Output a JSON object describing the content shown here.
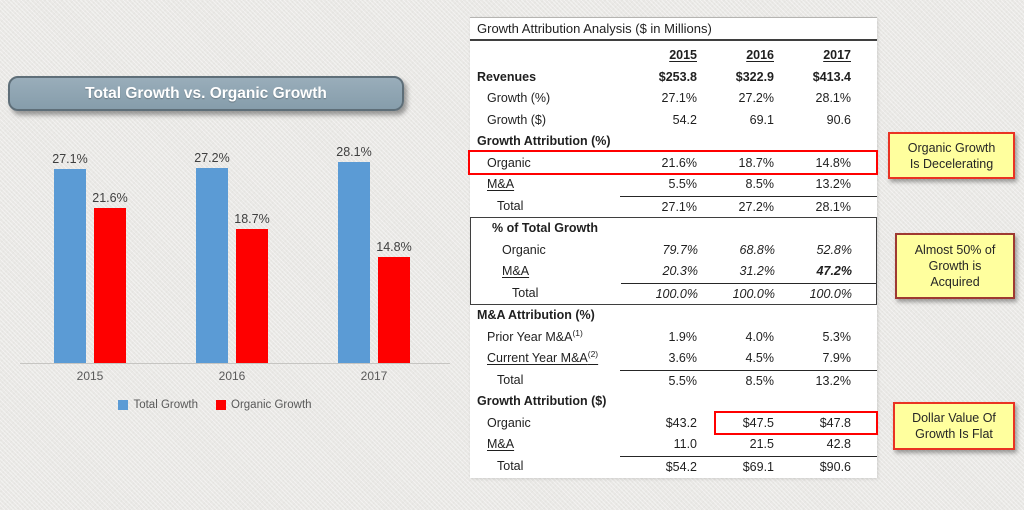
{
  "chart_data": {
    "type": "bar",
    "title": "Total Growth vs. Organic Growth",
    "categories": [
      "2015",
      "2016",
      "2017"
    ],
    "series": [
      {
        "name": "Total Growth",
        "color": "#5B9BD5",
        "values": [
          27.1,
          27.2,
          28.1
        ]
      },
      {
        "name": "Organic Growth",
        "color": "#FE0000",
        "values": [
          21.6,
          18.7,
          14.8
        ]
      }
    ],
    "value_suffix": "%",
    "ylim": [
      0,
      30
    ],
    "gridlines": false,
    "legend_position": "bottom"
  },
  "table": {
    "title": "Growth Attribution Analysis ($ in Millions)",
    "columns": [
      "2015",
      "2016",
      "2017"
    ],
    "blocks": [
      {
        "boxed": false,
        "rows": [
          {
            "label": "Revenues",
            "label_bold": true,
            "values_bold": true,
            "indent": 0,
            "values": [
              "$253.8",
              "$322.9",
              "$413.4"
            ]
          },
          {
            "label": "Growth (%)",
            "indent": 1,
            "values": [
              "27.1%",
              "27.2%",
              "28.1%"
            ]
          },
          {
            "label": "Growth ($)",
            "indent": 1,
            "values": [
              "54.2",
              "69.1",
              "90.6"
            ]
          },
          {
            "label": "Growth Attribution (%)",
            "label_bold": true,
            "indent": 0,
            "values": null
          },
          {
            "label": "Organic",
            "indent": 1,
            "values": [
              "21.6%",
              "18.7%",
              "14.8%"
            ],
            "outline": "full"
          },
          {
            "label": "M&A",
            "label_underline": true,
            "indent": 1,
            "values": [
              "5.5%",
              "8.5%",
              "13.2%"
            ]
          },
          {
            "label": "Total",
            "indent": 2,
            "values": [
              "27.1%",
              "27.2%",
              "28.1%"
            ],
            "rule": true
          }
        ]
      },
      {
        "boxed": true,
        "rows": [
          {
            "label": "% of Total Growth",
            "label_bold": true,
            "indent": 0,
            "values": null
          },
          {
            "label": "Organic",
            "indent": 1,
            "values_italic": true,
            "values": [
              "79.7%",
              "68.8%",
              "52.8%"
            ]
          },
          {
            "label": "M&A",
            "label_underline": true,
            "indent": 1,
            "values_italic": true,
            "bold_value_indexes": [
              2
            ],
            "values": [
              "20.3%",
              "31.2%",
              "47.2%"
            ]
          },
          {
            "label": "Total",
            "indent": 2,
            "values_italic": true,
            "values": [
              "100.0%",
              "100.0%",
              "100.0%"
            ],
            "rule": true
          }
        ]
      },
      {
        "boxed": false,
        "rows": [
          {
            "label": "M&A Attribution (%)",
            "label_bold": true,
            "indent": 0,
            "values": null
          },
          {
            "label": "Prior Year M&A",
            "sup": "(1)",
            "indent": 1,
            "values": [
              "1.9%",
              "4.0%",
              "5.3%"
            ]
          },
          {
            "label": "Current Year M&A",
            "sup": "(2)",
            "label_underline": true,
            "indent": 1,
            "values": [
              "3.6%",
              "4.5%",
              "7.9%"
            ]
          },
          {
            "label": "Total",
            "indent": 2,
            "values": [
              "5.5%",
              "8.5%",
              "13.2%"
            ],
            "rule": true
          },
          {
            "label": "Growth Attribution ($)",
            "label_bold": true,
            "indent": 0,
            "values": null
          },
          {
            "label": "Organic",
            "indent": 1,
            "values": [
              "$43.2",
              "$47.5",
              "$47.8"
            ],
            "outline": "cols23"
          },
          {
            "label": "M&A",
            "label_underline": true,
            "indent": 1,
            "values": [
              "11.0",
              "21.5",
              "42.8"
            ]
          },
          {
            "label": "Total",
            "indent": 2,
            "values": [
              "$54.2",
              "$69.1",
              "$90.6"
            ],
            "rule": true
          }
        ]
      }
    ]
  },
  "callouts": [
    {
      "text": "Organic Growth\nIs Decelerating",
      "border_color": "#E93323"
    },
    {
      "text": "Almost 50% of\nGrowth is\nAcquired",
      "border_color": "#9E3A32"
    },
    {
      "text": "Dollar Value Of\nGrowth Is Flat",
      "border_color": "#E93323"
    }
  ],
  "colors": {
    "highlight_red": "#FF0000",
    "callout_bg": "#FFFF9E",
    "bar_blue": "#5B9BD5",
    "bar_red": "#FE0000",
    "title_box_bg": "#8DA3B1"
  }
}
